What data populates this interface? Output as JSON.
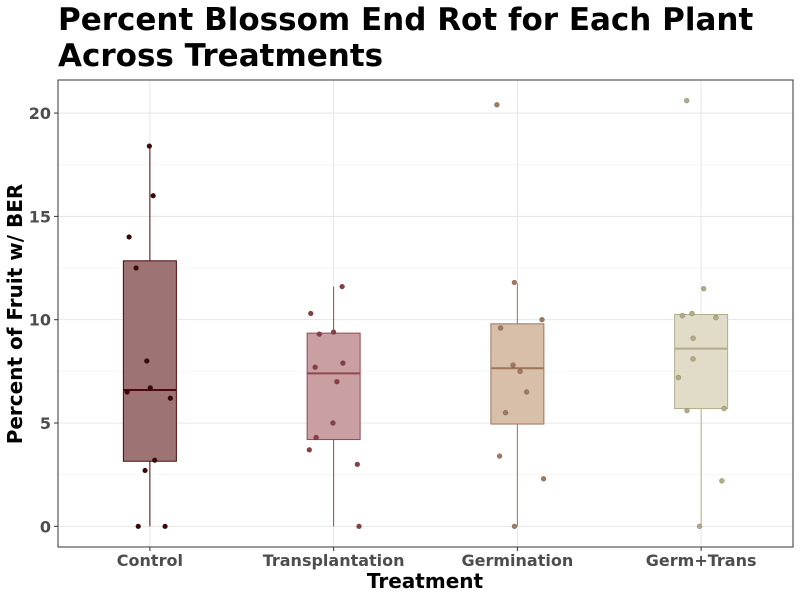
{
  "chart_data": {
    "type": "box",
    "title": "Percent Blossom End Rot for Each Plant Across Treatments",
    "title_lines": [
      "Percent Blossom End Rot for Each Plant",
      "Across Treatments"
    ],
    "xlabel": "Treatment",
    "ylabel": "Percent of Fruit w/ BER",
    "categories": [
      "Control",
      "Transplantation",
      "Germination",
      "Germ+Trans"
    ],
    "ylim": [
      -1,
      21.6
    ],
    "yticks": [
      0,
      5,
      10,
      15,
      20
    ],
    "grid": true,
    "legend": "none",
    "series": [
      {
        "category": "Control",
        "fill": "#9e7374",
        "stroke": "#4a0a0c",
        "point": "#3d0708",
        "box": {
          "min": 0,
          "q1": 3.15,
          "median": 6.6,
          "q3": 12.85,
          "max": 18.35
        },
        "points": [
          18.4,
          16.0,
          14.0,
          12.5,
          8.0,
          6.7,
          6.5,
          6.2,
          3.2,
          2.7,
          0,
          0
        ]
      },
      {
        "category": "Transplantation",
        "fill": "#c99fa2",
        "stroke": "#8f4a51",
        "point": "#8a3e46",
        "box": {
          "min": 0,
          "q1": 4.2,
          "median": 7.4,
          "q3": 9.35,
          "max": 11.6
        },
        "points": [
          11.6,
          10.3,
          9.4,
          9.3,
          7.9,
          7.7,
          7.0,
          5.0,
          4.3,
          3.7,
          3.0,
          0
        ]
      },
      {
        "category": "Germination",
        "fill": "#d7bfa9",
        "stroke": "#9e7557",
        "point": "#a07a5f",
        "box": {
          "min": 0,
          "q1": 4.95,
          "median": 7.65,
          "q3": 9.8,
          "max": 11.75
        },
        "points": [
          20.4,
          11.8,
          10.0,
          9.6,
          7.8,
          7.5,
          6.5,
          5.5,
          3.4,
          2.3,
          0
        ]
      },
      {
        "category": "Germ+Trans",
        "fill": "#e1dcc7",
        "stroke": "#b4ad8c",
        "point": "#b2ab86",
        "box": {
          "min": 0,
          "q1": 5.7,
          "median": 8.6,
          "q3": 10.25,
          "max": 10.25
        },
        "points": [
          20.6,
          11.5,
          10.3,
          10.2,
          10.1,
          9.1,
          8.1,
          7.2,
          5.7,
          5.6,
          2.2,
          0
        ]
      }
    ]
  }
}
